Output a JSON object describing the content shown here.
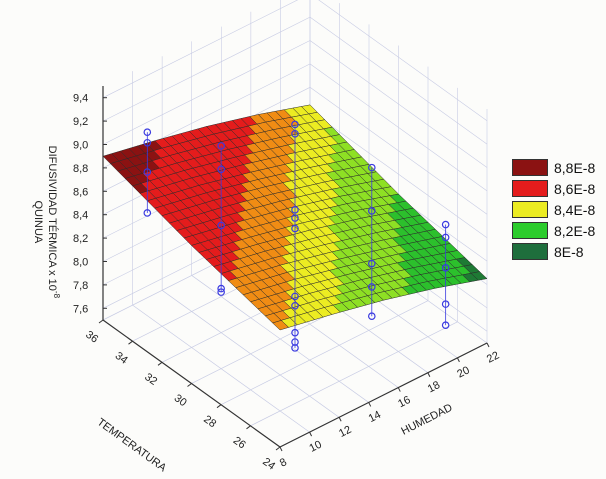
{
  "chart_data": {
    "type": "surface3d",
    "ylabel_line1": "DIFUSIVIDAD TÉRMICA x 10",
    "ylabel_exp": "-8",
    "ylabel_line2": "QUINUA",
    "xlabel": "TEMPERATURA",
    "hlabel": "HUMEDAD",
    "temperature_ticks": [
      "24",
      "26",
      "28",
      "30",
      "32",
      "34",
      "36"
    ],
    "humidity_ticks": [
      "8",
      "10",
      "12",
      "14",
      "16",
      "18",
      "20",
      "22"
    ],
    "z_ticks": [
      "7,6",
      "7,8",
      "8,0",
      "8,2",
      "8,4",
      "8,6",
      "8,8",
      "9,0",
      "9,2",
      "9,4"
    ],
    "temperature_range": [
      24,
      36
    ],
    "humidity_range": [
      8,
      22
    ],
    "z_range": [
      7.5,
      9.5
    ],
    "surface_grid": {
      "temperature": [
        24,
        27,
        30,
        33,
        36
      ],
      "humidity": [
        8,
        11.5,
        15,
        18.5,
        22
      ],
      "z": [
        [
          8.5,
          8.41,
          8.31,
          8.19,
          8.05
        ],
        [
          8.59,
          8.5,
          8.39,
          8.27,
          8.14
        ],
        [
          8.68,
          8.59,
          8.49,
          8.37,
          8.23
        ],
        [
          8.79,
          8.7,
          8.59,
          8.47,
          8.34
        ],
        [
          8.9,
          8.81,
          8.71,
          8.59,
          8.45
        ]
      ]
    },
    "points": [
      {
        "T": 34.6,
        "H": 9.6,
        "z": [
          9.13,
          9.04,
          8.79,
          8.44
        ]
      },
      {
        "T": 32.3,
        "H": 12.3,
        "z": [
          9.05,
          8.85,
          8.37,
          7.83,
          7.8
        ]
      },
      {
        "T": 30.0,
        "H": 15.0,
        "z": [
          9.27,
          9.19,
          8.54,
          8.47,
          8.38,
          7.8,
          7.72,
          7.49,
          7.41,
          7.36
        ]
      },
      {
        "T": 27.6,
        "H": 17.8,
        "z": [
          8.94,
          8.57,
          8.12,
          7.92,
          7.67
        ]
      },
      {
        "T": 25.3,
        "H": 20.5,
        "z": [
          8.49,
          8.38,
          8.12,
          7.81,
          7.63
        ]
      }
    ],
    "legend": [
      {
        "label": "8,8E-8",
        "color": "#8b1212",
        "min": 8.8
      },
      {
        "label": "8,6E-8",
        "color": "#e41c1c",
        "min": 8.6
      },
      {
        "label": "8,4E-8",
        "color": "#ecec22",
        "min": 8.4
      },
      {
        "label": "8,2E-8",
        "color": "#2ccc2c",
        "min": 8.2
      },
      {
        "label": "8E-8",
        "color": "#1e6e3c",
        "min": 8.0
      }
    ],
    "band_colors": [
      "#8b1212",
      "#e41c1c",
      "#f08c14",
      "#ecec22",
      "#8ee024",
      "#2cc02c",
      "#1e7a34"
    ],
    "point_color": "#3a3ae0",
    "legend_placement": "right"
  }
}
